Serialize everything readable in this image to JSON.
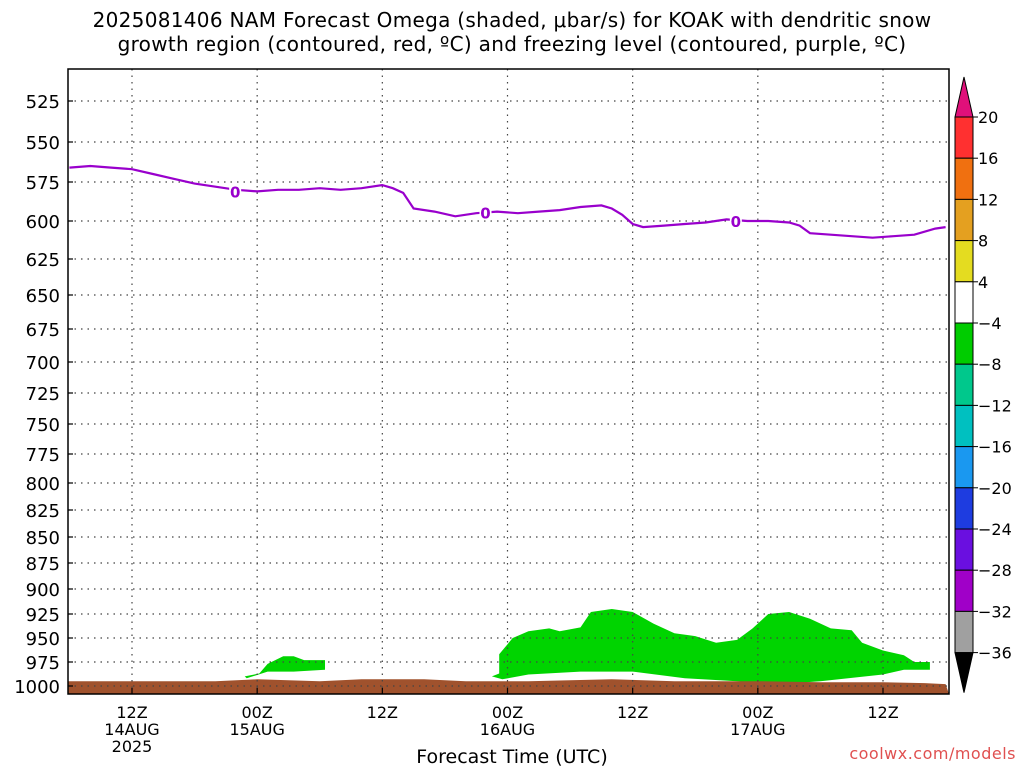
{
  "title_line1": "2025081406 NAM Forecast Omega (shaded, μbar/s) for KOAK with dendritic snow",
  "title_line2": "growth region (contoured, red, ºC) and freezing level (contoured, purple, ºC)",
  "credit": "coolwx.com/models",
  "colors": {
    "freezing_level": "#9900cc",
    "omega_negative_light": "#00d400",
    "terrain": "#a0522d",
    "grid": "#555555"
  },
  "chart_data": {
    "type": "area",
    "title": "2025081406 NAM Forecast Omega (shaded, μbar/s) for KOAK with dendritic snow growth region (contoured, red, ºC) and freezing level (contoured, purple, ºC)",
    "xlabel": "Forecast Time (UTC)",
    "ylabel": "",
    "x_range_hours": [
      6,
      84
    ],
    "y_range_mb": [
      500,
      1005
    ],
    "y_inverted": true,
    "yticks": [
      525,
      550,
      575,
      600,
      625,
      650,
      675,
      700,
      725,
      750,
      775,
      800,
      825,
      850,
      875,
      900,
      925,
      950,
      975,
      1000
    ],
    "xticks": [
      {
        "hour": 12,
        "lines": [
          "12Z",
          "14AUG",
          "2025"
        ]
      },
      {
        "hour": 24,
        "lines": [
          "00Z",
          "15AUG"
        ]
      },
      {
        "hour": 36,
        "lines": [
          "12Z"
        ]
      },
      {
        "hour": 48,
        "lines": [
          "00Z",
          "16AUG"
        ]
      },
      {
        "hour": 60,
        "lines": [
          "12Z"
        ]
      },
      {
        "hour": 72,
        "lines": [
          "00Z",
          "17AUG"
        ]
      },
      {
        "hour": 84,
        "lines": [
          "12Z"
        ]
      }
    ],
    "grid": true,
    "freezing_level": {
      "label": "0",
      "label_hours": [
        24,
        48,
        72
      ],
      "points": [
        [
          6,
          566
        ],
        [
          8,
          565
        ],
        [
          10,
          566
        ],
        [
          12,
          567
        ],
        [
          14,
          570
        ],
        [
          16,
          573
        ],
        [
          18,
          576
        ],
        [
          20,
          578
        ],
        [
          22,
          580
        ],
        [
          24,
          581
        ],
        [
          26,
          580
        ],
        [
          28,
          580
        ],
        [
          30,
          579
        ],
        [
          32,
          580
        ],
        [
          34,
          579
        ],
        [
          36,
          577
        ],
        [
          37,
          579
        ],
        [
          38,
          582
        ],
        [
          39,
          592
        ],
        [
          41,
          594
        ],
        [
          43,
          597
        ],
        [
          45,
          595
        ],
        [
          47,
          594
        ],
        [
          49,
          595
        ],
        [
          51,
          594
        ],
        [
          53,
          593
        ],
        [
          55,
          591
        ],
        [
          57,
          590
        ],
        [
          58,
          592
        ],
        [
          59,
          596
        ],
        [
          60,
          602
        ],
        [
          61,
          604
        ],
        [
          63,
          603
        ],
        [
          65,
          602
        ],
        [
          67,
          601
        ],
        [
          69,
          599
        ],
        [
          71,
          600
        ],
        [
          73,
          600
        ],
        [
          75,
          601
        ],
        [
          76,
          603
        ],
        [
          77,
          608
        ],
        [
          79,
          609
        ],
        [
          81,
          610
        ],
        [
          83,
          611
        ],
        [
          85,
          610
        ],
        [
          87,
          609
        ],
        [
          89,
          605
        ],
        [
          90,
          604
        ]
      ]
    },
    "omega_regions": [
      {
        "range": "-8 to -4",
        "color": "#00d400",
        "polygon": [
          [
            22.8,
            990
          ],
          [
            24.2,
            987
          ],
          [
            25,
            977
          ],
          [
            26.5,
            969
          ],
          [
            27.5,
            969
          ],
          [
            28.5,
            973
          ],
          [
            30.5,
            973
          ],
          [
            30.5,
            983
          ],
          [
            27.5,
            985
          ],
          [
            25,
            985
          ],
          [
            23,
            992
          ],
          [
            22.8,
            990
          ]
        ]
      },
      {
        "range": "-8 to -4",
        "color": "#00d400",
        "polygon": [
          [
            46.5,
            990
          ],
          [
            47.2,
            987
          ],
          [
            47.2,
            967
          ],
          [
            48.5,
            950
          ],
          [
            50,
            943
          ],
          [
            52,
            940
          ],
          [
            53,
            943
          ],
          [
            55,
            939
          ],
          [
            56,
            923
          ],
          [
            58,
            920
          ],
          [
            60,
            923
          ],
          [
            62,
            935
          ],
          [
            64,
            945
          ],
          [
            66,
            948
          ],
          [
            68,
            955
          ],
          [
            70,
            952
          ],
          [
            71.5,
            940
          ],
          [
            73,
            925
          ],
          [
            75,
            923
          ],
          [
            77,
            930
          ],
          [
            79,
            940
          ],
          [
            81,
            942
          ],
          [
            82,
            955
          ],
          [
            84,
            963
          ],
          [
            86,
            968
          ],
          [
            87,
            975
          ],
          [
            88.5,
            975
          ],
          [
            88.5,
            983
          ],
          [
            86,
            983
          ],
          [
            84,
            988
          ],
          [
            78,
            995
          ],
          [
            74,
            998
          ],
          [
            70,
            995
          ],
          [
            65,
            992
          ],
          [
            60,
            985
          ],
          [
            55,
            985
          ],
          [
            50,
            988
          ],
          [
            47.5,
            993
          ],
          [
            46.5,
            990
          ]
        ]
      }
    ],
    "terrain": {
      "color": "#a0522d",
      "top_points": [
        [
          6,
          995
        ],
        [
          12,
          995
        ],
        [
          20,
          995
        ],
        [
          24,
          993
        ],
        [
          30,
          995
        ],
        [
          34,
          993
        ],
        [
          40,
          993
        ],
        [
          44,
          995
        ],
        [
          50,
          995
        ],
        [
          58,
          993
        ],
        [
          64,
          995
        ],
        [
          72,
          995
        ],
        [
          78,
          996
        ],
        [
          84,
          996
        ],
        [
          88,
          997
        ],
        [
          90,
          998
        ]
      ]
    },
    "colorbar": {
      "levels": [
        20,
        16,
        12,
        8,
        4,
        -4,
        -8,
        -12,
        -16,
        -20,
        -24,
        -28,
        -32,
        -36
      ],
      "colors": [
        "#ff3030",
        "#f07010",
        "#e4a020",
        "#e4dc20",
        "#ffffff",
        "#00cc00",
        "#00c88c",
        "#00c0c0",
        "#1a98f0",
        "#1e3ce0",
        "#6a0fe0",
        "#a000c8",
        "#a0a0a0"
      ],
      "top_arrow_color": "#e0107a",
      "bottom_arrow_color": "#000000"
    }
  }
}
